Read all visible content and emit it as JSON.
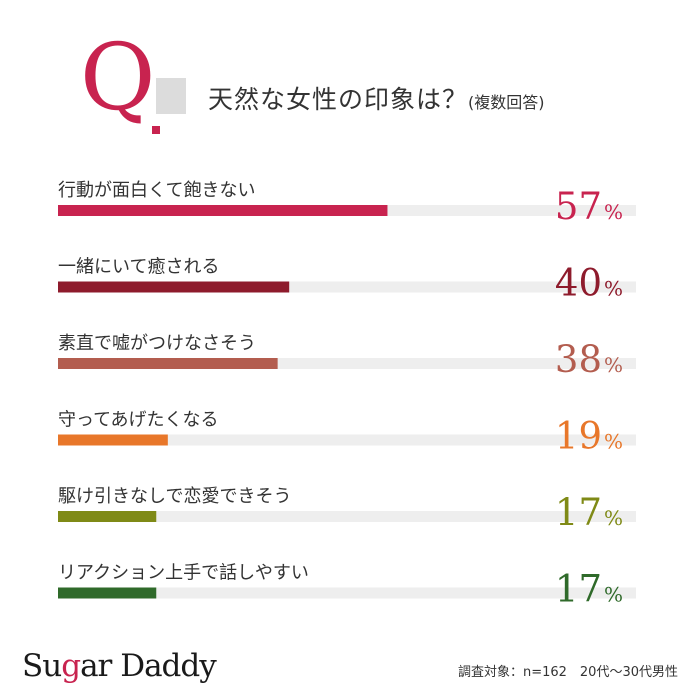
{
  "header": {
    "q_letter": "Q",
    "question": "天然な女性の印象は？",
    "question_note": "(複数回答)"
  },
  "colors": {
    "q_accent": "#c8234f",
    "track": "#eeeeee"
  },
  "chart_data": {
    "type": "bar",
    "orientation": "horizontal",
    "unit": "%",
    "xlim": [
      0,
      100
    ],
    "grid": false,
    "categories": [
      "行動が面白くて飽きない",
      "一緒にいて癒される",
      "素直で嘘がつけなさそう",
      "守ってあげたくなる",
      "駆け引きなしで恋愛できそう",
      "リアクション上手で話しやすい"
    ],
    "values": [
      57,
      40,
      38,
      19,
      17,
      17
    ],
    "bar_colors": [
      "#c8234f",
      "#8e1b2c",
      "#b35d4f",
      "#e8772a",
      "#7f8a16",
      "#2f6a2a"
    ]
  },
  "footer": {
    "logo_prefix": "Su",
    "logo_g": "g",
    "logo_suffix": "ar Daddy",
    "survey_note": "調査対象：n=162　20代～30代男性"
  }
}
